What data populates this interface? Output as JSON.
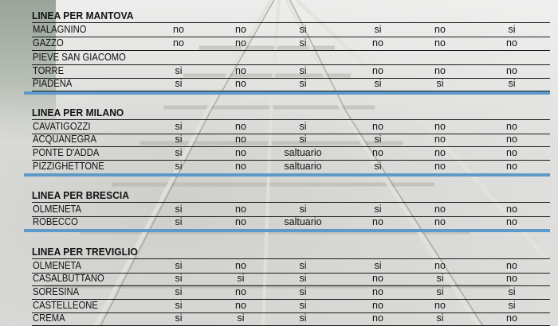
{
  "colors": {
    "separator": "#5d9ac9",
    "text": "#111111"
  },
  "sections": [
    {
      "title": "LINEA PER MANTOVA",
      "rows": [
        {
          "station": "MALAGNINO",
          "values": [
            "no",
            "no",
            "si",
            "si",
            "no",
            "si"
          ]
        },
        {
          "station": "GAZZO",
          "values": [
            "no",
            "no",
            "si",
            "no",
            "no",
            "no"
          ]
        },
        {
          "station": "PIEVE SAN GIACOMO",
          "values": [
            "",
            "",
            "",
            "",
            "",
            ""
          ]
        },
        {
          "station": "TORRE",
          "values": [
            "si",
            "no",
            "si",
            "no",
            "no",
            "no"
          ]
        },
        {
          "station": "PIADENA",
          "values": [
            "si",
            "no",
            "si",
            "si",
            "si",
            "si"
          ]
        }
      ]
    },
    {
      "title": "LINEA PER MILANO",
      "rows": [
        {
          "station": "CAVATIGOZZI",
          "values": [
            "si",
            "no",
            "si",
            "no",
            "no",
            "no"
          ]
        },
        {
          "station": "ACQUANEGRA",
          "values": [
            "si",
            "no",
            "si",
            "si",
            "no",
            "no"
          ]
        },
        {
          "station": "PONTE D'ADDA",
          "values": [
            "si",
            "no",
            "saltuario",
            "no",
            "no",
            "no"
          ]
        },
        {
          "station": "PIZZIGHETTONE",
          "values": [
            "si",
            "no",
            "saltuario",
            "si",
            "no",
            "no"
          ]
        }
      ]
    },
    {
      "title": "LINEA PER BRESCIA",
      "rows": [
        {
          "station": "OLMENETA",
          "values": [
            "si",
            "no",
            "si",
            "si",
            "no",
            "no"
          ]
        },
        {
          "station": "ROBECCO",
          "values": [
            "si",
            "no",
            "saltuario",
            "no",
            "no",
            "no"
          ]
        }
      ]
    },
    {
      "title": "LINEA PER TREVIGLIO",
      "rows": [
        {
          "station": "OLMENETA",
          "values": [
            "si",
            "no",
            "si",
            "si",
            "no",
            "no"
          ]
        },
        {
          "station": "CASALBUTTANO",
          "values": [
            "si",
            "si",
            "si",
            "no",
            "si",
            "no"
          ]
        },
        {
          "station": "SORESINA",
          "values": [
            "si",
            "no",
            "si",
            "no",
            "si",
            "si"
          ]
        },
        {
          "station": "CASTELLEONE",
          "values": [
            "si",
            "no",
            "si",
            "no",
            "no",
            "si"
          ]
        },
        {
          "station": "CREMA",
          "values": [
            "si",
            "si",
            "si",
            "no",
            "si",
            "no"
          ]
        }
      ]
    }
  ]
}
